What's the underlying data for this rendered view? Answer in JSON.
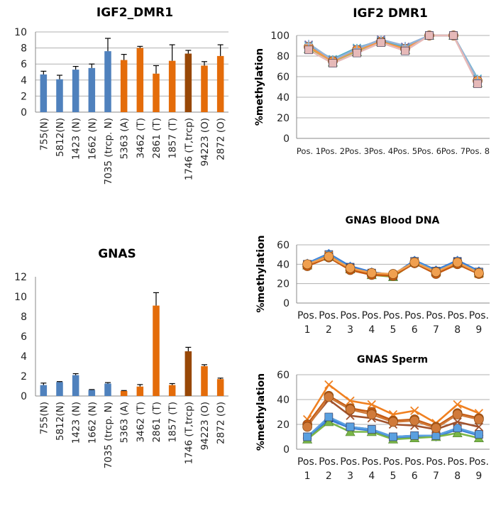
{
  "chart_data": [
    {
      "type": "bar",
      "title": "IGF2_DMR1",
      "categories": [
        "755(N)",
        "5812(N)",
        "1423 (N)",
        "1662 (N)",
        "7035 (trcp. N)",
        "5363 (A)",
        "3462 (T)",
        "2861 (T)",
        "1857 (T)",
        "1746 (T,trcp)",
        "94223 (O)",
        "2872 (O)"
      ],
      "values": [
        4.7,
        4.1,
        5.3,
        5.5,
        7.6,
        6.5,
        8.0,
        4.8,
        6.4,
        7.3,
        5.8,
        7.0
      ],
      "errors": [
        0.4,
        0.5,
        0.4,
        0.5,
        1.6,
        0.7,
        0.2,
        1.0,
        2.0,
        0.4,
        0.5,
        1.4
      ],
      "bar_colors": [
        "#4f81bd",
        "#4f81bd",
        "#4f81bd",
        "#4f81bd",
        "#4f81bd",
        "#e46c0a",
        "#e46c0a",
        "#e46c0a",
        "#e46c0a",
        "#984807",
        "#e46c0a",
        "#e46c0a"
      ],
      "ylim": [
        0,
        10
      ],
      "yticks": [
        "0",
        "2",
        "4",
        "6",
        "8",
        "10"
      ],
      "grid": true
    },
    {
      "type": "line",
      "title": "IGF2 DMR1",
      "ylabel": "%methylation",
      "categories": [
        "Pos. 1",
        "Pos. 2",
        "Pos. 3",
        "Pos. 4",
        "Pos. 5",
        "Pos. 6",
        "Pos. 7",
        "Pos. 8"
      ],
      "series": [
        {
          "color": "#4f81bd",
          "marker": "diamond",
          "values": [
            90,
            75,
            86,
            95,
            88,
            100,
            100,
            56
          ]
        },
        {
          "color": "#c0504d",
          "marker": "square",
          "values": [
            88,
            74,
            85,
            94,
            87,
            100,
            100,
            55
          ]
        },
        {
          "color": "#9bbb59",
          "marker": "triangle",
          "values": [
            87,
            74,
            84,
            94,
            86,
            100,
            100,
            54
          ]
        },
        {
          "color": "#8064a2",
          "marker": "x",
          "values": [
            91,
            76,
            87,
            96,
            89,
            100,
            100,
            57
          ]
        },
        {
          "color": "#4bacc6",
          "marker": "star",
          "values": [
            90,
            77,
            88,
            95,
            88,
            100,
            100,
            58
          ]
        },
        {
          "color": "#f79646",
          "marker": "circle",
          "values": [
            89,
            75,
            86,
            94,
            87,
            100,
            100,
            56
          ]
        },
        {
          "color": "#95b3d7",
          "marker": "plus",
          "values": [
            92,
            76,
            87,
            96,
            90,
            100,
            100,
            57
          ]
        },
        {
          "color": "#e6b9b8",
          "marker": "square",
          "values": [
            86,
            73,
            83,
            93,
            85,
            100,
            100,
            53
          ]
        }
      ],
      "ylim": [
        0,
        100
      ],
      "yticks": [
        "0",
        "20",
        "40",
        "60",
        "80",
        "100"
      ],
      "grid": true
    },
    {
      "type": "bar",
      "title": "GNAS",
      "categories": [
        "755(N)",
        "5812(N)",
        "1423 (N)",
        "1662 (N)",
        "7035 (trcp. N)",
        "5363 (A)",
        "3462 (T)",
        "2861 (T)",
        "1857 (T)",
        "1746 (T,trcp)",
        "94223 (O)",
        "2872 (O)"
      ],
      "values": [
        1.1,
        1.4,
        2.1,
        0.6,
        1.25,
        0.5,
        0.95,
        9.1,
        1.1,
        4.5,
        3.0,
        1.7
      ],
      "errors": [
        0.2,
        0.05,
        0.15,
        0.05,
        0.1,
        0.05,
        0.2,
        1.3,
        0.15,
        0.4,
        0.15,
        0.1
      ],
      "bar_colors": [
        "#4f81bd",
        "#4f81bd",
        "#4f81bd",
        "#4f81bd",
        "#4f81bd",
        "#e46c0a",
        "#e46c0a",
        "#e46c0a",
        "#e46c0a",
        "#984807",
        "#e46c0a",
        "#e46c0a"
      ],
      "ylim": [
        0,
        12
      ],
      "yticks": [
        "0",
        "2",
        "4",
        "6",
        "8",
        "10",
        "12"
      ],
      "grid": false
    },
    {
      "type": "line",
      "title": "GNAS Blood DNA",
      "ylabel": "%methylation",
      "categories": [
        "Pos. 1",
        "Pos. 2",
        "Pos. 3",
        "Pos. 4",
        "Pos. 5",
        "Pos. 6",
        "Pos. 7",
        "Pos. 8",
        "Pos. 9"
      ],
      "series": [
        {
          "color": "#1f5fbf",
          "marker": "square",
          "values": [
            40,
            50,
            37,
            31,
            28,
            43,
            33,
            43,
            32
          ]
        },
        {
          "color": "#3a7ed6",
          "marker": "diamond",
          "values": [
            41,
            51,
            38,
            32,
            29,
            44,
            34,
            44,
            33
          ]
        },
        {
          "color": "#7ab648",
          "marker": "triangle",
          "values": [
            39,
            48,
            35,
            29,
            27,
            42,
            32,
            41,
            31
          ]
        },
        {
          "color": "#5aa0e0",
          "marker": "square",
          "values": [
            40,
            50,
            36,
            30,
            28,
            43,
            33,
            42,
            32
          ]
        },
        {
          "color": "#e46c0a",
          "marker": "x",
          "values": [
            39,
            49,
            35,
            30,
            29,
            42,
            31,
            41,
            30
          ]
        },
        {
          "color": "#c55a11",
          "marker": "circle",
          "values": [
            38,
            47,
            34,
            29,
            28,
            41,
            30,
            40,
            30
          ]
        },
        {
          "color": "#f0a050",
          "marker": "circle",
          "values": [
            40,
            48,
            36,
            31,
            30,
            42,
            32,
            42,
            31
          ]
        }
      ],
      "ylim": [
        0,
        60
      ],
      "yticks": [
        "0",
        "20",
        "40",
        "60"
      ],
      "grid": true
    },
    {
      "type": "line",
      "title": "GNAS Sperm",
      "ylabel": "%methylation",
      "categories": [
        "Pos. 1",
        "Pos. 2",
        "Pos. 3",
        "Pos. 4",
        "Pos. 5",
        "Pos. 6",
        "Pos. 7",
        "Pos. 8",
        "Pos. 9"
      ],
      "series": [
        {
          "color": "#1f5fbf",
          "marker": "square",
          "values": [
            10,
            25,
            18,
            16,
            10,
            11,
            11,
            17,
            12
          ]
        },
        {
          "color": "#3a7ed6",
          "marker": "diamond",
          "values": [
            9,
            24,
            17,
            15,
            9,
            10,
            10,
            16,
            11
          ]
        },
        {
          "color": "#7ab648",
          "marker": "triangle",
          "values": [
            8,
            22,
            14,
            14,
            8,
            9,
            10,
            13,
            9
          ]
        },
        {
          "color": "#5aa0e0",
          "marker": "square",
          "values": [
            10,
            26,
            18,
            16,
            10,
            11,
            11,
            17,
            12
          ]
        },
        {
          "color": "#f08020",
          "marker": "x",
          "values": [
            24,
            52,
            39,
            36,
            28,
            31,
            21,
            36,
            29
          ]
        },
        {
          "color": "#c55a11",
          "marker": "circle",
          "values": [
            20,
            43,
            33,
            30,
            23,
            24,
            18,
            29,
            25
          ]
        },
        {
          "color": "#a0522d",
          "marker": "x",
          "values": [
            19,
            40,
            27,
            25,
            20,
            19,
            16,
            22,
            18
          ]
        },
        {
          "color": "#d07a3a",
          "marker": "circle",
          "values": [
            18,
            42,
            32,
            28,
            22,
            23,
            17,
            28,
            24
          ]
        }
      ],
      "ylim": [
        0,
        60
      ],
      "yticks": [
        "0",
        "20",
        "40",
        "60"
      ],
      "grid": true
    }
  ]
}
